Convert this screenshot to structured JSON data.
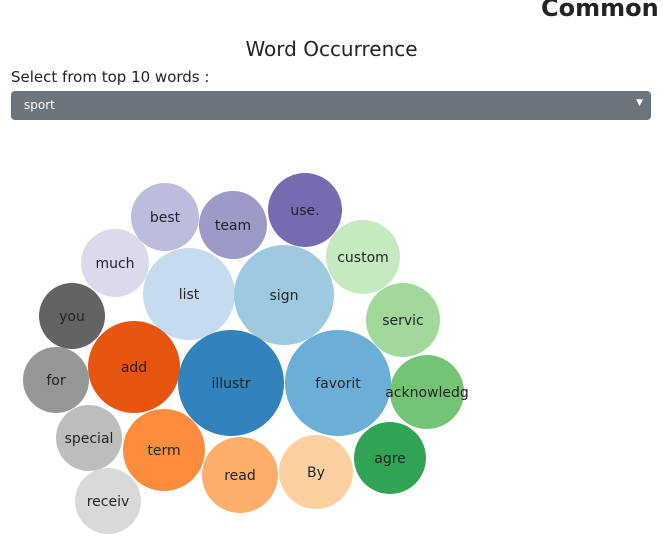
{
  "header": {
    "page_heading": "Common W"
  },
  "chart": {
    "title": "Word Occurrence",
    "select_label": "Select from top 10 words :",
    "selected_word": "sport"
  },
  "bubbles": [
    {
      "word": "use.",
      "color": "#756bb1"
    },
    {
      "word": "team",
      "color": "#9e9ac8"
    },
    {
      "word": "best",
      "color": "#bcbddc"
    },
    {
      "word": "much",
      "color": "#dadaeb"
    },
    {
      "word": "custom",
      "color": "#c7e9c0"
    },
    {
      "word": "list",
      "color": "#c6dbef"
    },
    {
      "word": "sign",
      "color": "#9ecae1"
    },
    {
      "word": "you",
      "color": "#636363"
    },
    {
      "word": "servic",
      "color": "#a1d99b"
    },
    {
      "word": "add",
      "color": "#e6550d"
    },
    {
      "word": "for",
      "color": "#969696"
    },
    {
      "word": "illustr",
      "color": "#3182bd"
    },
    {
      "word": "favorit",
      "color": "#6baed6"
    },
    {
      "word": "acknowledg",
      "color": "#74c476"
    },
    {
      "word": "special",
      "color": "#bdbdbd"
    },
    {
      "word": "term",
      "color": "#fd8d3c"
    },
    {
      "word": "agre",
      "color": "#31a354"
    },
    {
      "word": "read",
      "color": "#fdae6b"
    },
    {
      "word": "By",
      "color": "#fdd0a2"
    },
    {
      "word": "receiv",
      "color": "#d9d9d9"
    }
  ]
}
